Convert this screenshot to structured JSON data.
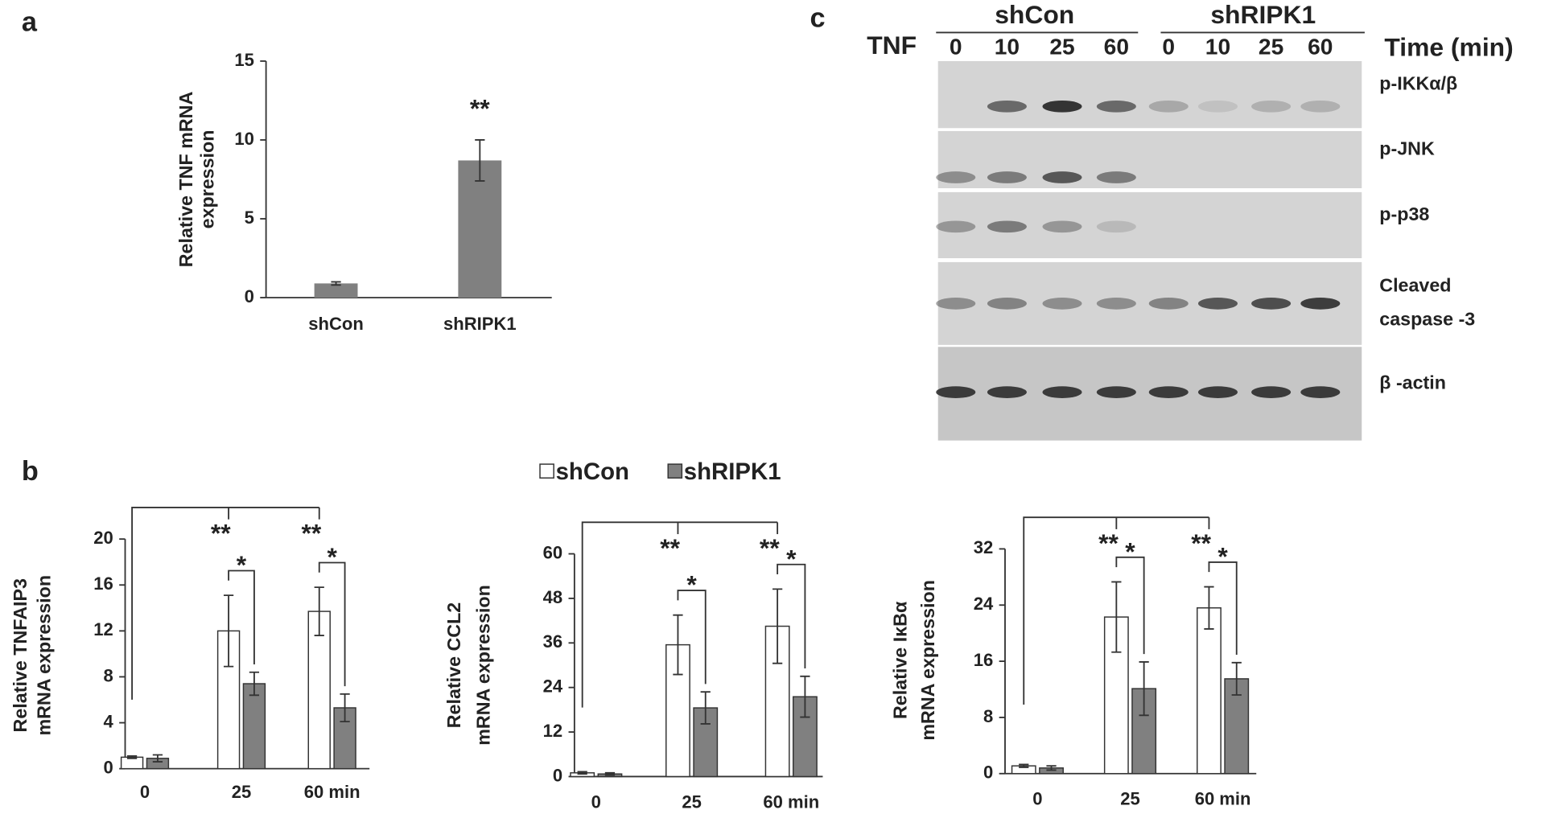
{
  "panel_labels": [
    "a",
    "b",
    "c"
  ],
  "chart_data": [
    {
      "type": "bar",
      "y_label": [
        "Relative TNF mRNA",
        "expression"
      ],
      "categories": [
        "shCon",
        "shRIPK1"
      ],
      "values": [
        0.9,
        8.7
      ],
      "errors": [
        0.1,
        1.3
      ],
      "color": "#808080",
      "significance": [
        null,
        "**"
      ],
      "ylim": [
        0,
        15
      ],
      "yticks": [
        0,
        5,
        10,
        15
      ]
    },
    {
      "type": "bar",
      "y_label": [
        "Relative TNFAIP3",
        "mRNA expression"
      ],
      "categories": [
        "0",
        "25",
        "60 min"
      ],
      "series": [
        {
          "name": "shCon",
          "color": "#ffffff",
          "values": [
            1.0,
            12.0,
            13.7
          ],
          "errors": [
            0.1,
            3.1,
            2.1
          ]
        },
        {
          "name": "shRIPK1",
          "color": "#808080",
          "values": [
            0.9,
            7.4,
            5.3
          ],
          "errors": [
            0.3,
            1.0,
            1.2
          ]
        }
      ],
      "significance": [
        null,
        {
          "vs_zero": "**",
          "pair": "*"
        },
        {
          "vs_zero": "**",
          "pair": "*"
        }
      ],
      "ylim": [
        0,
        20
      ],
      "yticks": [
        0,
        4,
        8,
        12,
        16,
        20
      ]
    },
    {
      "type": "bar",
      "y_label": [
        "Relative CCL2",
        "mRNA expression"
      ],
      "categories": [
        "0",
        "25",
        "60 min"
      ],
      "series": [
        {
          "color": "#ffffff",
          "values": [
            1.0,
            35.5,
            40.5
          ],
          "errors": [
            0.3,
            8.0,
            10.0
          ]
        },
        {
          "color": "#808080",
          "values": [
            0.7,
            18.5,
            21.5
          ],
          "errors": [
            0.3,
            4.3,
            5.5
          ]
        }
      ],
      "significance": [
        null,
        {
          "vs_zero": "**",
          "pair": "*"
        },
        {
          "vs_zero": "**",
          "pair": "*"
        }
      ],
      "ylim": [
        0,
        60
      ],
      "yticks": [
        0,
        12,
        24,
        36,
        48,
        60
      ]
    },
    {
      "type": "bar",
      "y_label": [
        "Relative IκBα",
        "mRNA expression"
      ],
      "categories": [
        "0",
        "25",
        "60 min"
      ],
      "series": [
        {
          "color": "#ffffff",
          "values": [
            1.1,
            22.3,
            23.6
          ],
          "errors": [
            0.2,
            5.0,
            3.0
          ]
        },
        {
          "color": "#808080",
          "values": [
            0.8,
            12.1,
            13.5
          ],
          "errors": [
            0.3,
            3.8,
            2.3
          ]
        }
      ],
      "significance": [
        null,
        {
          "vs_zero": "**",
          "pair": "*"
        },
        {
          "vs_zero": "**",
          "pair": "*"
        }
      ],
      "ylim": [
        0,
        32
      ],
      "yticks": [
        0,
        8,
        16,
        24,
        32
      ]
    }
  ],
  "blot": {
    "treatment": "TNF",
    "groups": [
      "shCon",
      "shRIPK1"
    ],
    "lanes": [
      "0",
      "10",
      "25",
      "60",
      "0",
      "10",
      "25",
      "60"
    ],
    "time_label": "Time (min)",
    "rows": [
      [
        "p-IKKα/β"
      ],
      [
        "p-JNK"
      ],
      [
        "p-p38"
      ],
      [
        "Cleaved",
        "caspase -3"
      ],
      [
        "β -actin"
      ]
    ]
  }
}
